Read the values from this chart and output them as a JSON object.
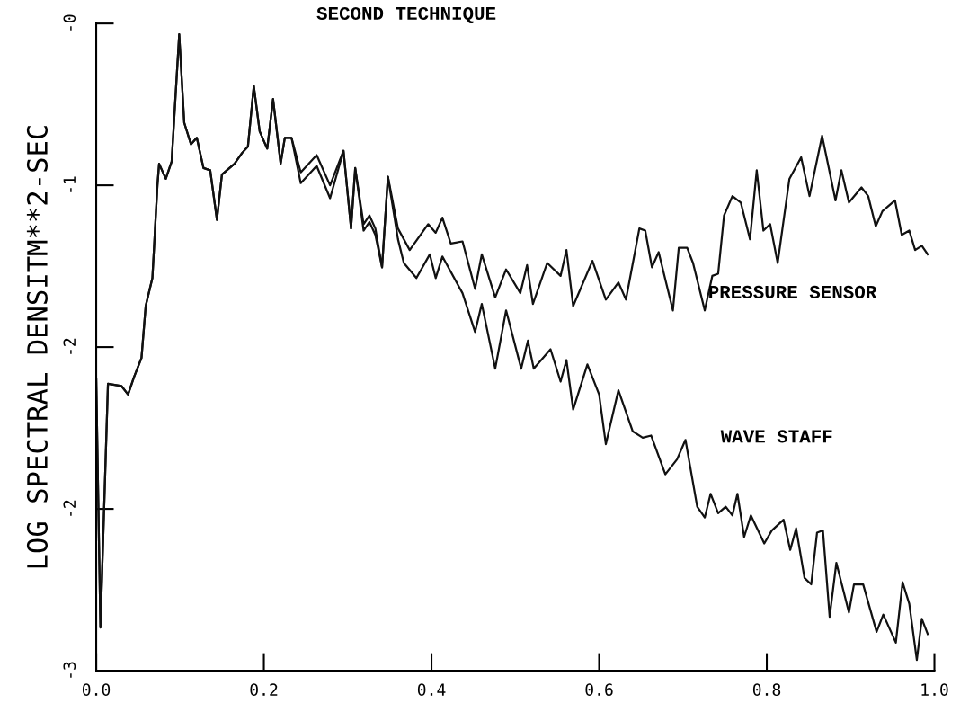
{
  "chart_data": {
    "type": "line",
    "title": "SECOND TECHNIQUE",
    "ylabel": "LOG SPECTRAL DENSITM**2-SEC",
    "xlim": [
      0.0,
      1.0
    ],
    "xticks": [
      {
        "value": 0.0,
        "label": "0.0"
      },
      0.2,
      0.4,
      0.6,
      0.8,
      {
        "value": 1.0,
        "label": "1.0"
      }
    ],
    "ylim": [
      -3,
      0
    ],
    "yticks": [
      {
        "value": 0,
        "label": "-0"
      },
      {
        "value": -0.75,
        "label": "-1"
      },
      {
        "value": -1.5,
        "label": "-2"
      },
      {
        "value": -2.25,
        "label": "-2"
      },
      {
        "value": -3,
        "label": "-3"
      }
    ],
    "grid": false,
    "legend": false,
    "marker": "none",
    "line_style": "solid",
    "annotations": [
      "PRESSURE SENSOR",
      "WAVE STAFF"
    ],
    "series": [
      {
        "color": "#111111",
        "x": [
          0.0,
          0.005,
          0.014,
          0.03,
          0.038,
          0.045,
          0.054,
          0.059,
          0.067,
          0.073,
          0.075,
          0.083,
          0.09,
          0.099,
          0.105,
          0.113,
          0.12,
          0.128,
          0.136,
          0.144,
          0.15,
          0.165,
          0.174,
          0.181,
          0.188,
          0.195,
          0.204,
          0.211,
          0.22,
          0.225,
          0.233,
          0.244,
          0.263,
          0.279,
          0.295,
          0.304,
          0.309,
          0.319,
          0.326,
          0.333,
          0.341,
          0.348,
          0.36,
          0.374,
          0.396,
          0.405,
          0.413,
          0.423,
          0.437,
          0.452,
          0.46,
          0.476,
          0.489,
          0.506,
          0.514,
          0.521,
          0.538,
          0.554,
          0.561,
          0.569,
          0.592,
          0.608,
          0.623,
          0.632,
          0.648,
          0.655,
          0.663,
          0.671,
          0.688,
          0.695,
          0.705,
          0.712,
          0.726,
          0.735,
          0.742,
          0.749,
          0.759,
          0.769,
          0.78,
          0.788,
          0.796,
          0.804,
          0.813,
          0.827,
          0.841,
          0.851,
          0.866,
          0.882,
          0.889,
          0.898,
          0.913,
          0.921,
          0.93,
          0.938,
          0.953,
          0.961,
          0.97,
          0.977,
          0.985,
          0.992
        ],
        "values": [
          -1.65,
          -2.8,
          -1.67,
          -1.68,
          -1.72,
          -1.64,
          -1.55,
          -1.31,
          -1.18,
          -0.75,
          -0.65,
          -0.72,
          -0.64,
          -0.05,
          -0.46,
          -0.56,
          -0.53,
          -0.67,
          -0.68,
          -0.91,
          -0.7,
          -0.65,
          -0.6,
          -0.57,
          -0.29,
          -0.5,
          -0.58,
          -0.35,
          -0.65,
          -0.53,
          -0.53,
          -0.69,
          -0.61,
          -0.75,
          -0.59,
          -0.95,
          -0.67,
          -0.93,
          -0.89,
          -0.95,
          -1.13,
          -0.71,
          -0.95,
          -1.05,
          -0.93,
          -0.97,
          -0.9,
          -1.02,
          -1.01,
          -1.23,
          -1.07,
          -1.27,
          -1.14,
          -1.25,
          -1.12,
          -1.3,
          -1.11,
          -1.17,
          -1.05,
          -1.31,
          -1.1,
          -1.28,
          -1.2,
          -1.28,
          -0.95,
          -0.96,
          -1.13,
          -1.06,
          -1.33,
          -1.04,
          -1.04,
          -1.11,
          -1.33,
          -1.17,
          -1.16,
          -0.89,
          -0.8,
          -0.83,
          -1.0,
          -0.68,
          -0.96,
          -0.93,
          -1.11,
          -0.72,
          -0.62,
          -0.8,
          -0.52,
          -0.82,
          -0.68,
          -0.83,
          -0.76,
          -0.8,
          -0.94,
          -0.87,
          -0.82,
          -0.98,
          -0.96,
          -1.05,
          -1.03,
          -1.07
        ]
      },
      {
        "color": "#111111",
        "x": [
          0.0,
          0.005,
          0.014,
          0.03,
          0.038,
          0.045,
          0.054,
          0.059,
          0.067,
          0.073,
          0.075,
          0.083,
          0.09,
          0.099,
          0.105,
          0.113,
          0.12,
          0.128,
          0.136,
          0.144,
          0.15,
          0.165,
          0.174,
          0.181,
          0.188,
          0.195,
          0.204,
          0.211,
          0.22,
          0.225,
          0.233,
          0.244,
          0.263,
          0.279,
          0.295,
          0.304,
          0.309,
          0.319,
          0.326,
          0.333,
          0.341,
          0.348,
          0.36,
          0.367,
          0.382,
          0.398,
          0.405,
          0.413,
          0.437,
          0.452,
          0.46,
          0.476,
          0.489,
          0.507,
          0.515,
          0.522,
          0.542,
          0.554,
          0.561,
          0.569,
          0.586,
          0.6,
          0.608,
          0.623,
          0.64,
          0.652,
          0.662,
          0.679,
          0.693,
          0.703,
          0.717,
          0.726,
          0.733,
          0.742,
          0.751,
          0.759,
          0.765,
          0.773,
          0.781,
          0.797,
          0.806,
          0.82,
          0.828,
          0.835,
          0.845,
          0.853,
          0.86,
          0.867,
          0.875,
          0.883,
          0.898,
          0.904,
          0.915,
          0.931,
          0.939,
          0.954,
          0.962,
          0.97,
          0.979,
          0.985,
          0.992
        ],
        "values": [
          -1.65,
          -2.8,
          -1.67,
          -1.68,
          -1.72,
          -1.64,
          -1.55,
          -1.31,
          -1.18,
          -0.75,
          -0.65,
          -0.72,
          -0.64,
          -0.05,
          -0.46,
          -0.56,
          -0.53,
          -0.67,
          -0.68,
          -0.91,
          -0.7,
          -0.65,
          -0.6,
          -0.57,
          -0.29,
          -0.5,
          -0.58,
          -0.35,
          -0.65,
          -0.53,
          -0.53,
          -0.74,
          -0.66,
          -0.81,
          -0.59,
          -0.95,
          -0.67,
          -0.96,
          -0.92,
          -0.98,
          -1.13,
          -0.71,
          -1.0,
          -1.11,
          -1.18,
          -1.07,
          -1.18,
          -1.08,
          -1.25,
          -1.43,
          -1.3,
          -1.6,
          -1.33,
          -1.6,
          -1.47,
          -1.6,
          -1.51,
          -1.66,
          -1.56,
          -1.79,
          -1.58,
          -1.72,
          -1.95,
          -1.7,
          -1.89,
          -1.92,
          -1.91,
          -2.09,
          -2.02,
          -1.93,
          -2.24,
          -2.29,
          -2.18,
          -2.27,
          -2.24,
          -2.28,
          -2.18,
          -2.38,
          -2.28,
          -2.41,
          -2.35,
          -2.3,
          -2.44,
          -2.34,
          -2.57,
          -2.6,
          -2.36,
          -2.35,
          -2.75,
          -2.5,
          -2.73,
          -2.6,
          -2.6,
          -2.82,
          -2.74,
          -2.87,
          -2.59,
          -2.69,
          -2.95,
          -2.76,
          -2.83
        ]
      }
    ]
  }
}
